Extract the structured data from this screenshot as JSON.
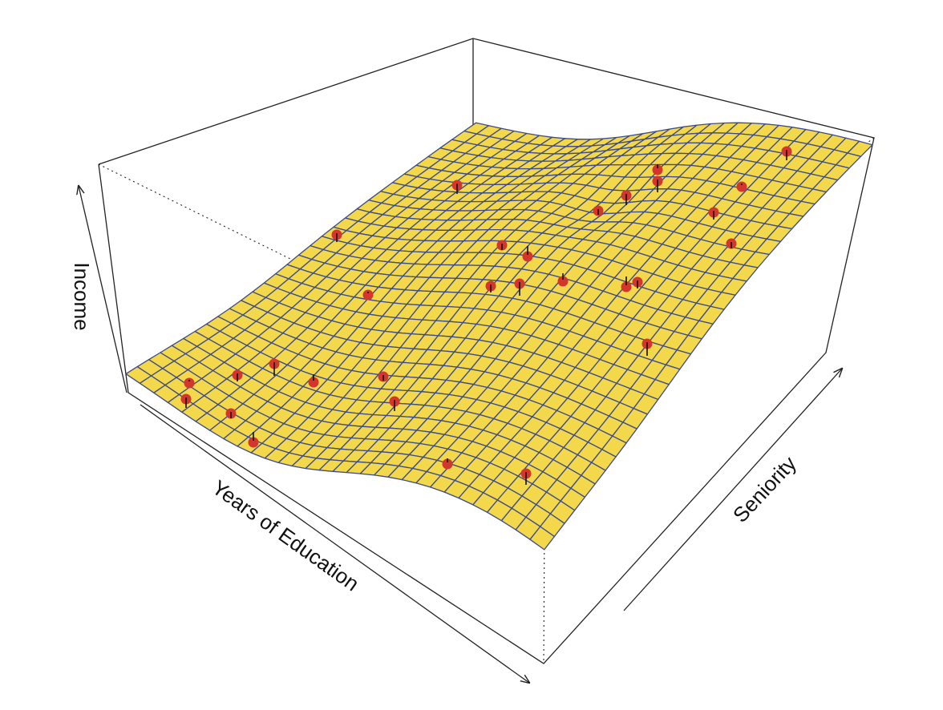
{
  "chart_data": {
    "type": "surface3d",
    "x_label": "Years of Education",
    "y_label": "Seniority",
    "z_label": "Income",
    "surface_color": "#f2d84a",
    "mesh_color": "#3b4a8c",
    "point_color": "#d3362c"
  }
}
